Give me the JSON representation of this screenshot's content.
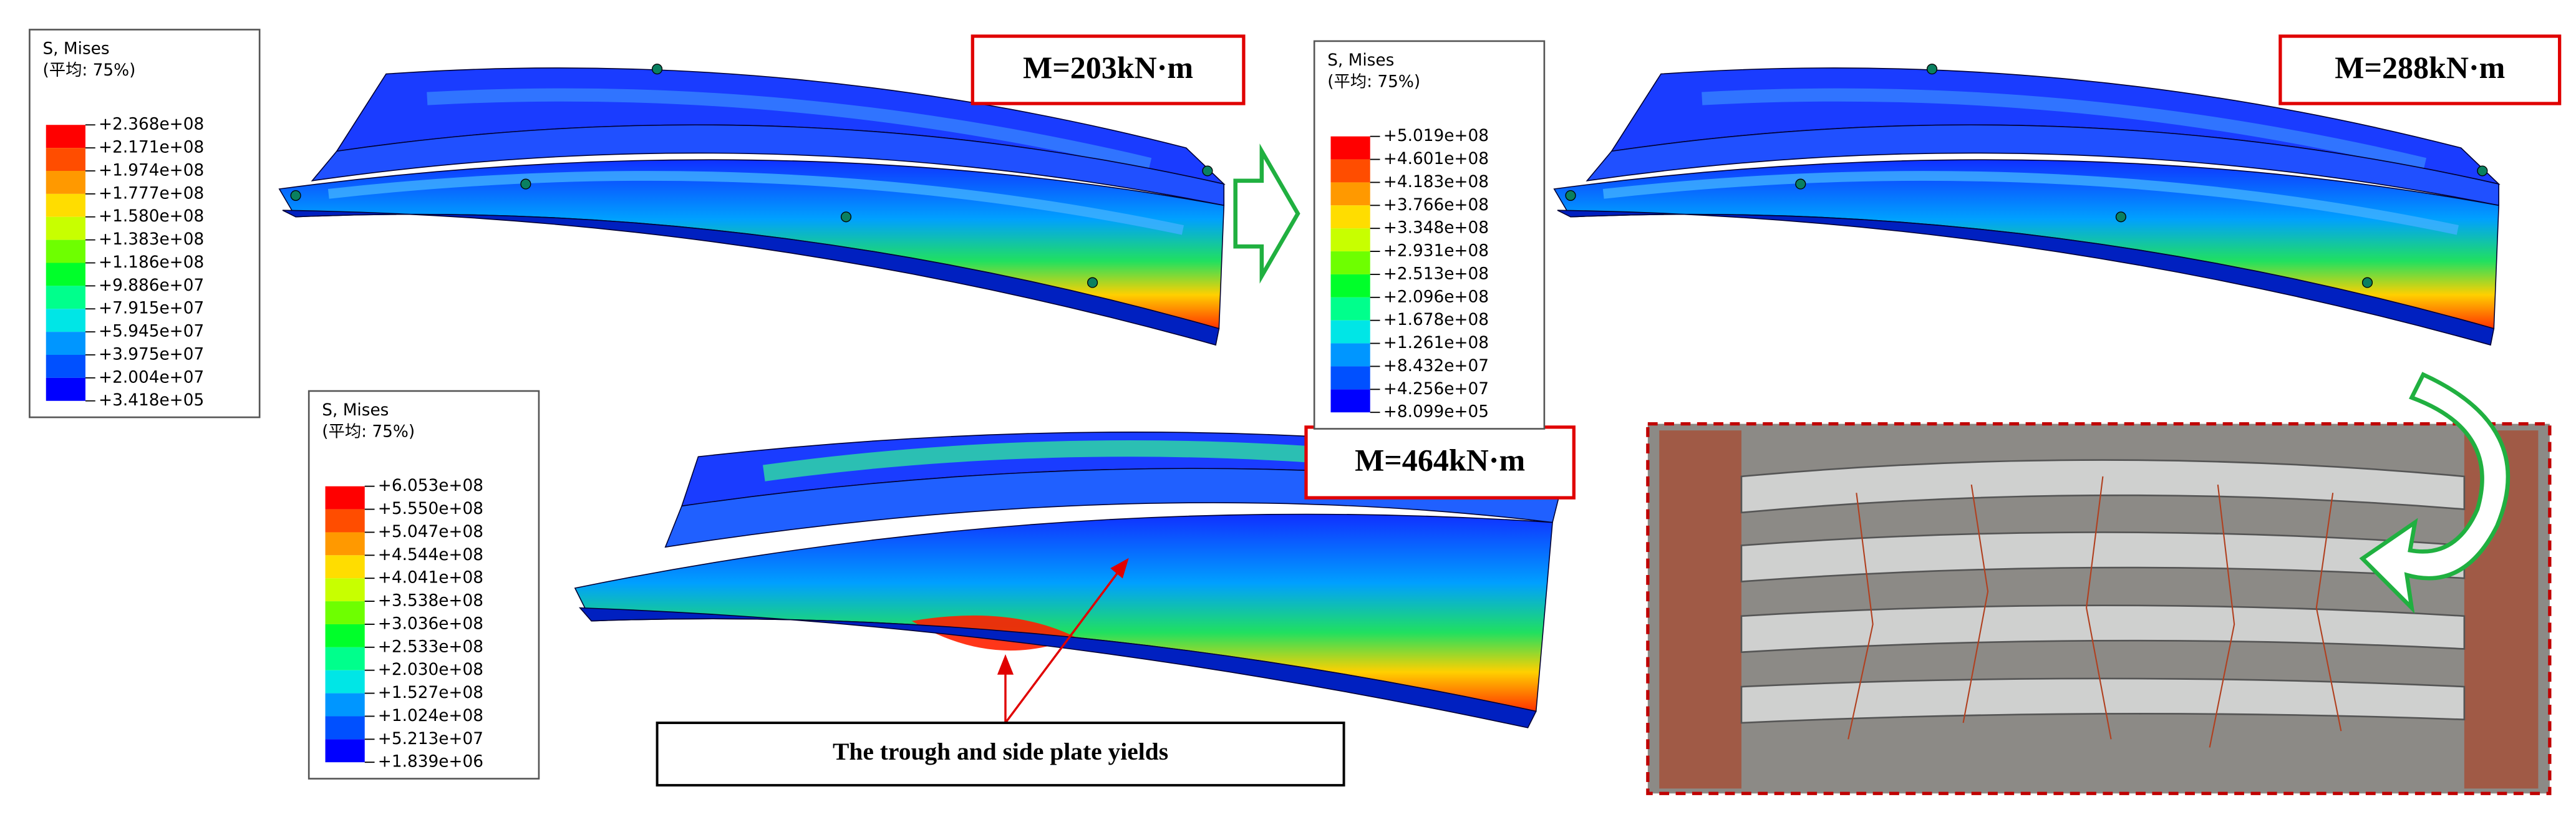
{
  "legends": [
    {
      "title": "S, Mises",
      "subtitle": "(平均: 75%)",
      "values": [
        "+2.368e+08",
        "+2.171e+08",
        "+1.974e+08",
        "+1.777e+08",
        "+1.580e+08",
        "+1.383e+08",
        "+1.186e+08",
        "+9.886e+07",
        "+7.915e+07",
        "+5.945e+07",
        "+3.975e+07",
        "+2.004e+07",
        "+3.418e+05"
      ]
    },
    {
      "title": "S, Mises",
      "subtitle": "(平均: 75%)",
      "values": [
        "+5.019e+08",
        "+4.601e+08",
        "+4.183e+08",
        "+3.766e+08",
        "+3.348e+08",
        "+2.931e+08",
        "+2.513e+08",
        "+2.096e+08",
        "+1.678e+08",
        "+1.261e+08",
        "+8.432e+07",
        "+4.256e+07",
        "+8.099e+05"
      ]
    },
    {
      "title": "S, Mises",
      "subtitle": "(平均: 75%)",
      "values": [
        "+6.053e+08",
        "+5.550e+08",
        "+5.047e+08",
        "+4.544e+08",
        "+4.041e+08",
        "+3.538e+08",
        "+3.036e+08",
        "+2.533e+08",
        "+2.030e+08",
        "+1.527e+08",
        "+1.024e+08",
        "+5.213e+07",
        "+1.839e+06"
      ]
    }
  ],
  "moments": [
    "M=203kN·m",
    "M=288kN·m",
    "M=464kN·m"
  ],
  "annotation": "The trough and side plate yields"
}
